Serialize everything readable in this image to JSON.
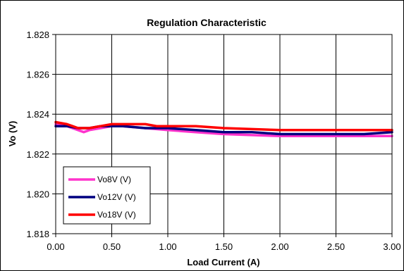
{
  "chart_data": {
    "type": "line",
    "title": "Regulation Characteristic",
    "xlabel": "Load Current (A)",
    "ylabel": "Vo (V)",
    "xlim": [
      0,
      3
    ],
    "ylim": [
      1.818,
      1.828
    ],
    "x_ticks": [
      "0.00",
      "0.50",
      "1.00",
      "1.50",
      "2.00",
      "2.50",
      "3.00"
    ],
    "y_ticks": [
      "1.818",
      "1.820",
      "1.822",
      "1.824",
      "1.826",
      "1.828"
    ],
    "grid": true,
    "legend_position": "bottom-left",
    "series": [
      {
        "name": "Vo8V (V)",
        "color": "#ff33cc",
        "x": [
          0.0,
          0.1,
          0.15,
          0.2,
          0.25,
          0.3,
          0.4,
          0.5,
          0.6,
          0.8,
          1.0,
          1.25,
          1.5,
          2.0,
          2.5,
          3.0
        ],
        "y": [
          1.8235,
          1.8234,
          1.8233,
          1.8232,
          1.8231,
          1.8232,
          1.8233,
          1.8234,
          1.8234,
          1.8233,
          1.8232,
          1.8231,
          1.823,
          1.8229,
          1.8229,
          1.8229
        ]
      },
      {
        "name": "Vo12V (V)",
        "color": "#000080",
        "x": [
          0.0,
          0.1,
          0.2,
          0.3,
          0.4,
          0.5,
          0.6,
          0.8,
          1.0,
          1.25,
          1.5,
          1.75,
          2.0,
          2.25,
          2.5,
          2.75,
          3.0
        ],
        "y": [
          1.8234,
          1.8234,
          1.8233,
          1.8233,
          1.8234,
          1.8234,
          1.8234,
          1.8233,
          1.8233,
          1.8232,
          1.8231,
          1.8231,
          1.823,
          1.823,
          1.823,
          1.823,
          1.8231
        ]
      },
      {
        "name": "Vo18V (V)",
        "color": "#ff0000",
        "x": [
          0.0,
          0.1,
          0.15,
          0.2,
          0.25,
          0.3,
          0.4,
          0.5,
          0.6,
          0.8,
          0.9,
          1.0,
          1.25,
          1.5,
          2.0,
          2.5,
          3.0
        ],
        "y": [
          1.8236,
          1.8235,
          1.8234,
          1.8233,
          1.8233,
          1.8233,
          1.8234,
          1.8235,
          1.8235,
          1.8235,
          1.8234,
          1.8234,
          1.8234,
          1.8233,
          1.8232,
          1.8232,
          1.8232
        ]
      }
    ]
  }
}
